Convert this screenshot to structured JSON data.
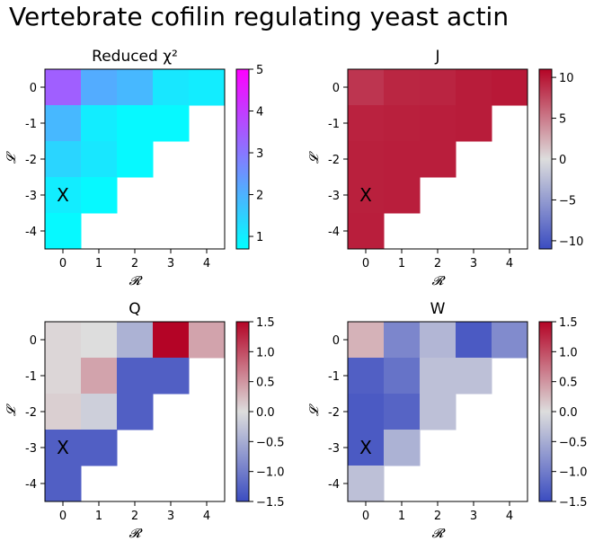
{
  "title": "Vertebrate cofilin regulating yeast actin",
  "chart_data": [
    {
      "type": "heatmap",
      "title": "Reduced χ²",
      "xlabel": "𝓡",
      "ylabel": "𝓛",
      "x_ticks": [
        "0",
        "1",
        "2",
        "3",
        "4"
      ],
      "y_ticks": [
        "0",
        "-1",
        "-2",
        "-3",
        "-4"
      ],
      "marker": {
        "text": "X",
        "cell": [
          0,
          3
        ]
      },
      "colormap": "cool",
      "colors": [
        "#00ffff",
        "#ff00ff"
      ],
      "clim": [
        0.7,
        5
      ],
      "colorbar_ticks": [
        "1",
        "2",
        "3",
        "4",
        "5"
      ],
      "values": [
        [
          3.4,
          2.1,
          1.9,
          1.1,
          1.0
        ],
        [
          1.9,
          1.0,
          0.8,
          0.8,
          null
        ],
        [
          1.4,
          1.1,
          0.8,
          null,
          null
        ],
        [
          1.0,
          0.8,
          null,
          null,
          null
        ],
        [
          0.8,
          null,
          null,
          null,
          null
        ]
      ]
    },
    {
      "type": "heatmap",
      "title": "J",
      "xlabel": "𝓡",
      "ylabel": "𝓛",
      "x_ticks": [
        "0",
        "1",
        "2",
        "3",
        "4"
      ],
      "y_ticks": [
        "0",
        "-1",
        "-2",
        "-3",
        "-4"
      ],
      "marker": {
        "text": "X",
        "cell": [
          0,
          3
        ]
      },
      "colormap": "coolwarm",
      "colors": [
        "#3b4cc0",
        "#dddddd",
        "#b40426"
      ],
      "clim": [
        -11,
        11
      ],
      "colorbar_ticks": [
        "10",
        "5",
        "0",
        "−5",
        "−10"
      ],
      "values": [
        [
          8.5,
          9.3,
          9.4,
          9.8,
          10.0
        ],
        [
          9.5,
          9.6,
          9.7,
          9.8,
          null
        ],
        [
          9.6,
          9.7,
          9.7,
          null,
          null
        ],
        [
          9.6,
          9.7,
          null,
          null,
          null
        ],
        [
          9.7,
          null,
          null,
          null,
          null
        ]
      ]
    },
    {
      "type": "heatmap",
      "title": "Q",
      "xlabel": "𝓡",
      "ylabel": "𝓛",
      "x_ticks": [
        "0",
        "1",
        "2",
        "3",
        "4"
      ],
      "y_ticks": [
        "0",
        "-1",
        "-2",
        "-3",
        "-4"
      ],
      "marker": {
        "text": "X",
        "cell": [
          0,
          3
        ]
      },
      "colormap": "coolwarm",
      "colors": [
        "#3b4cc0",
        "#dddddd",
        "#b40426"
      ],
      "clim": [
        -1.5,
        1.5
      ],
      "colorbar_ticks": [
        "1.5",
        "1.0",
        "0.5",
        "0.0",
        "−0.5",
        "−1.0",
        "−1.5"
      ],
      "values": [
        [
          0.05,
          0.0,
          -0.45,
          1.5,
          0.4
        ],
        [
          0.05,
          0.4,
          -1.3,
          -1.3,
          null
        ],
        [
          0.1,
          -0.15,
          -1.3,
          null,
          null
        ],
        [
          -1.3,
          -1.3,
          null,
          null,
          null
        ],
        [
          -1.3,
          null,
          null,
          null,
          null
        ]
      ]
    },
    {
      "type": "heatmap",
      "title": "W",
      "xlabel": "𝓡",
      "ylabel": "𝓛",
      "x_ticks": [
        "0",
        "1",
        "2",
        "3",
        "4"
      ],
      "y_ticks": [
        "0",
        "-1",
        "-2",
        "-3",
        "-4"
      ],
      "marker": {
        "text": "X",
        "cell": [
          0,
          3
        ]
      },
      "colormap": "coolwarm",
      "colors": [
        "#3b4cc0",
        "#dddddd",
        "#b40426"
      ],
      "clim": [
        -1.5,
        1.5
      ],
      "colorbar_ticks": [
        "1.5",
        "1.0",
        "0.5",
        "0.0",
        "−0.5",
        "−1.0",
        "−1.5"
      ],
      "values": [
        [
          0.3,
          -0.9,
          -0.4,
          -1.35,
          -0.85
        ],
        [
          -1.3,
          -1.1,
          -0.3,
          -0.3,
          null
        ],
        [
          -1.35,
          -1.25,
          -0.3,
          null,
          null
        ],
        [
          -1.35,
          -0.45,
          null,
          null,
          null
        ],
        [
          -0.3,
          null,
          null,
          null,
          null
        ]
      ]
    }
  ]
}
